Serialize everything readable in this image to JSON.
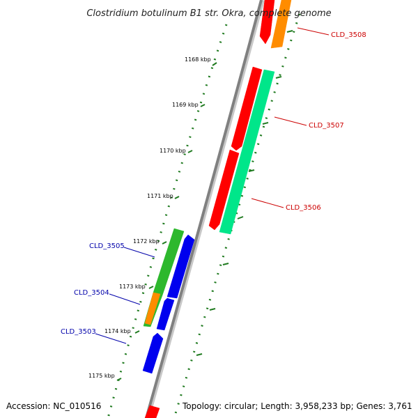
{
  "title": "Clostridium botulinum B1 str. Okra, complete genome",
  "footer": {
    "accession": "Accession: NC_010516",
    "summary": "Topology: circular; Length: 3,958,233 bp; Genes: 3,761"
  },
  "colors": {
    "backbone": "#808080",
    "ticks": "#1f7a1f",
    "label_forward": "#cc0000",
    "label_reverse": "#0000aa",
    "gene_red": "#ff0000",
    "gene_orange": "#ff8c00",
    "gene_teal": "#00e68a",
    "gene_green": "#2db82d",
    "gene_blue": "#0000ee"
  },
  "ticks": [
    {
      "label": "1168 kbp"
    },
    {
      "label": "1169 kbp"
    },
    {
      "label": "1170 kbp"
    },
    {
      "label": "1171 kbp"
    },
    {
      "label": "1172 kbp"
    },
    {
      "label": "1173 kbp"
    },
    {
      "label": "1174 kbp"
    },
    {
      "label": "1175 kbp"
    }
  ],
  "gene_labels": [
    {
      "text": "CLD_3508",
      "strand": "forward"
    },
    {
      "text": "CLD_3507",
      "strand": "forward"
    },
    {
      "text": "CLD_3506",
      "strand": "forward"
    },
    {
      "text": "CLD_3505",
      "strand": "reverse"
    },
    {
      "text": "CLD_3504",
      "strand": "reverse"
    },
    {
      "text": "CLD_3503",
      "strand": "reverse"
    }
  ]
}
